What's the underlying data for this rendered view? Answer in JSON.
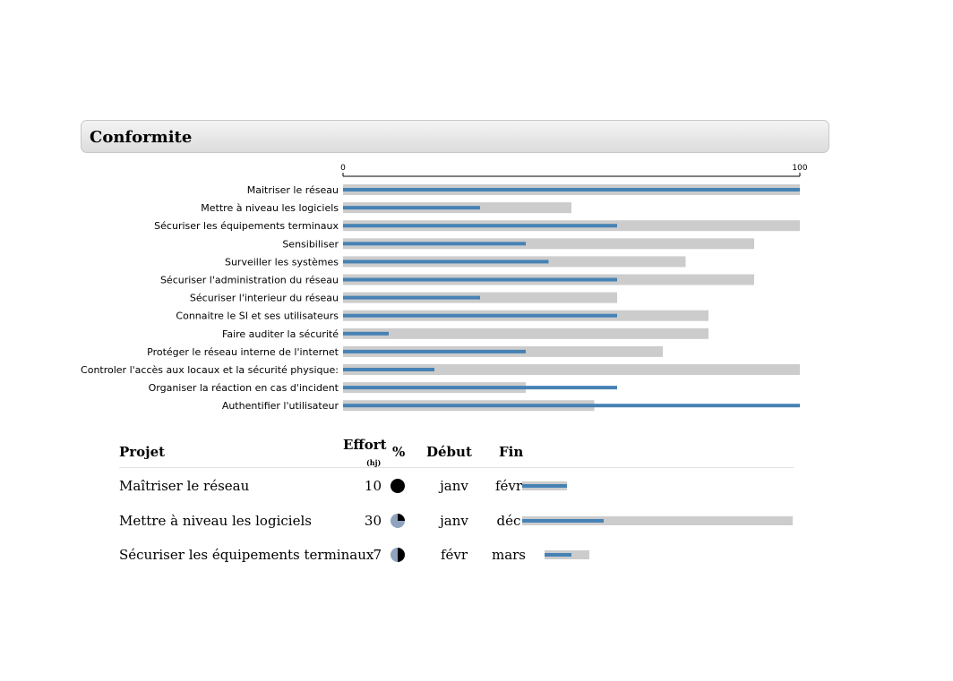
{
  "panel": {
    "title": "Conformite"
  },
  "chart_data": {
    "type": "bar",
    "orientation": "horizontal",
    "xlim": [
      0,
      100
    ],
    "x_ticks": [
      "0",
      "100"
    ],
    "categories": [
      "Maitriser le réseau",
      "Mettre à niveau les logiciels",
      "Sécuriser les équipements terminaux",
      "Sensibiliser",
      "Surveiller les systèmes",
      "Sécuriser l'administration du réseau",
      "Sécuriser l'interieur du réseau",
      "Connaitre le SI et ses utilisateurs",
      "Faire auditer la sécurité",
      "Protéger le réseau interne de l'internet",
      "Controler l'accès aux locaux et la sécurité physique:",
      "Organiser la réaction en cas d'incident",
      "Authentifier l'utilisateur"
    ],
    "series": [
      {
        "values": [
          100,
          50,
          100,
          90,
          75,
          90,
          60,
          80,
          80,
          70,
          100,
          40,
          55
        ]
      },
      {
        "values": [
          100,
          30,
          60,
          40,
          45,
          60,
          30,
          60,
          10,
          40,
          20,
          60,
          100
        ]
      }
    ],
    "colors": {
      "background_bar": "#cccccc",
      "value_bar": "#4682b4"
    }
  },
  "table": {
    "headers": {
      "project": "Projet",
      "effort": "Effort",
      "effort_unit": "(hj)",
      "percent": "%",
      "start": "Début",
      "end": "Fin"
    },
    "rows": [
      {
        "project": "Maîtriser le réseau",
        "effort": "10",
        "percent": 100,
        "start": "janv",
        "end": "févr",
        "bar_start": 0,
        "bar_length": 1,
        "bar_progress": 1
      },
      {
        "project": "Mettre à niveau les logiciels",
        "effort": "30",
        "percent": 25,
        "start": "janv",
        "end": "déc",
        "bar_start": 0,
        "bar_length": 6,
        "bar_progress": 0.3
      },
      {
        "project": "Sécuriser les équipements terminaux",
        "effort": "7",
        "percent": 50,
        "start": "févr",
        "end": "mars",
        "bar_start": 0.5,
        "bar_length": 1,
        "bar_progress": 0.6
      }
    ],
    "gantt_units": 6,
    "colors": {
      "pie_done": "#000000",
      "pie_rest": "#8fa3bf"
    }
  }
}
